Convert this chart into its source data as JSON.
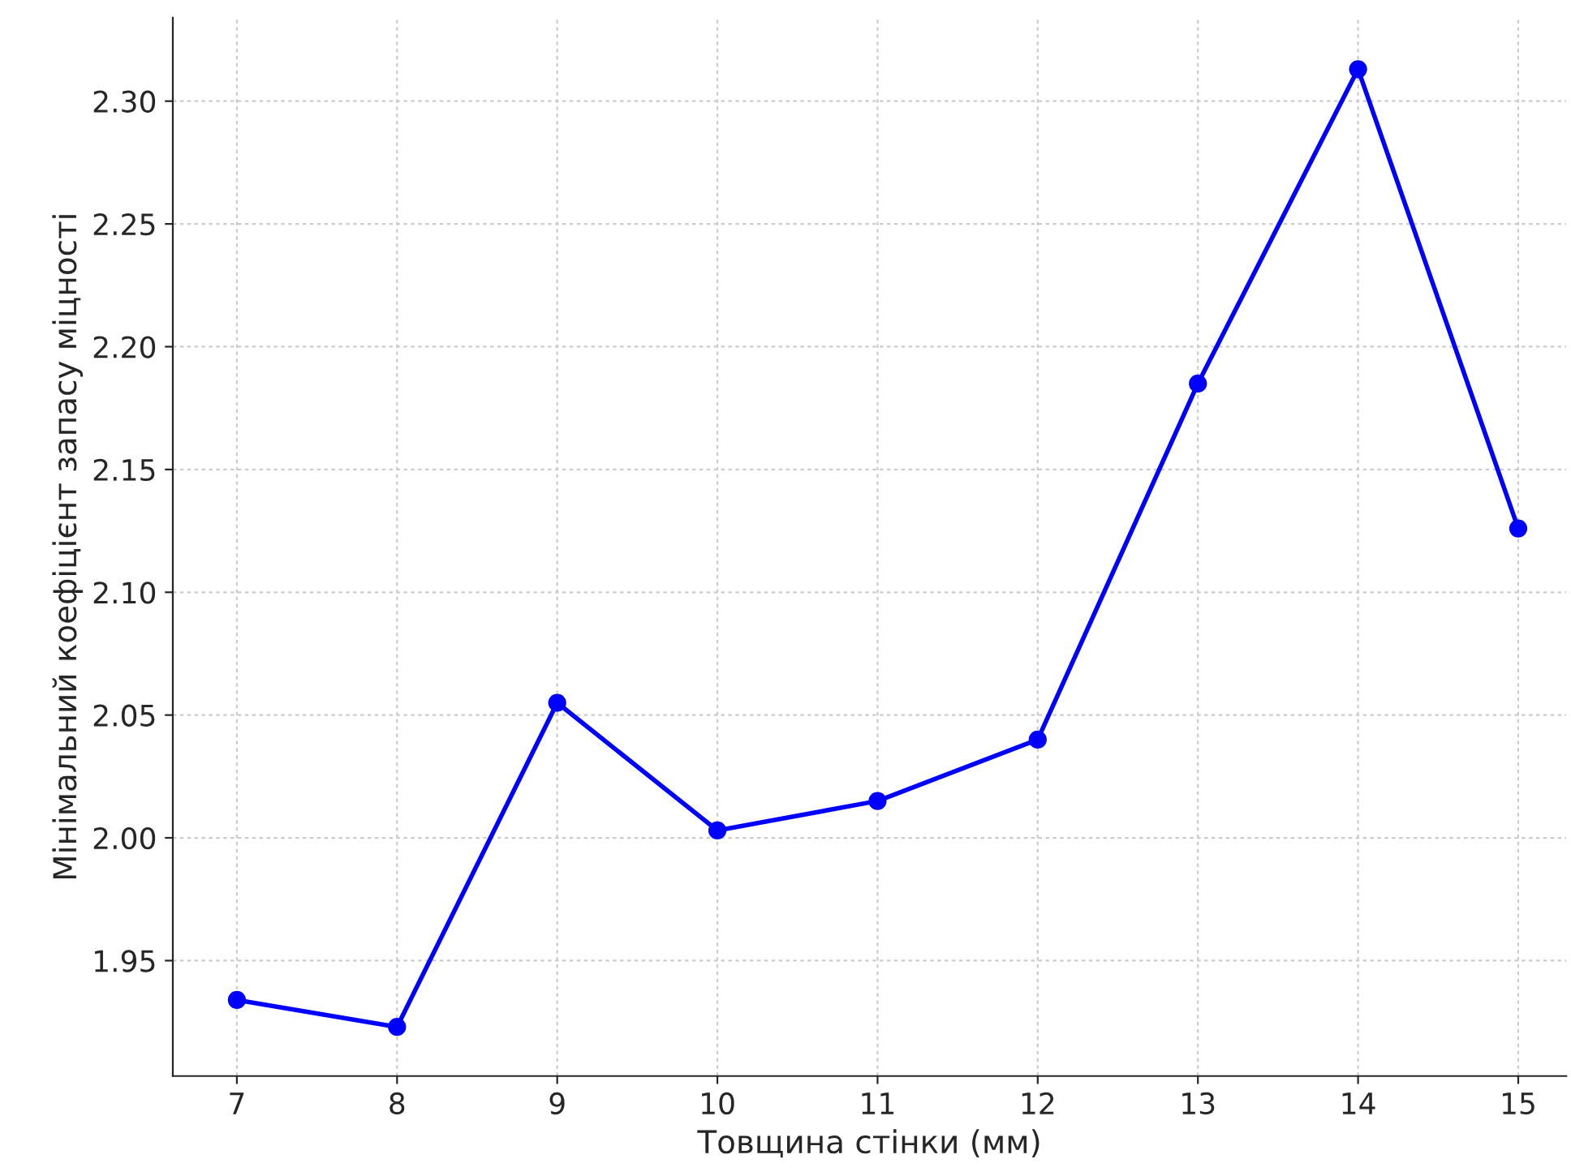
{
  "chart_data": {
    "type": "line",
    "xlabel": "Товщина стінки (мм)",
    "ylabel": "Мінімальний коефіцієнт запасу міцності",
    "x": [
      7,
      8,
      9,
      10,
      11,
      12,
      13,
      14,
      15
    ],
    "series": [
      {
        "color": "#0000ff",
        "values": [
          1.934,
          1.923,
          2.055,
          2.003,
          2.015,
          2.04,
          2.185,
          2.313,
          2.126
        ]
      }
    ],
    "xlim": [
      6.6,
      15.3
    ],
    "xticks": [
      7,
      8,
      9,
      10,
      11,
      12,
      13,
      14,
      15
    ],
    "ylim": [
      1.903,
      2.334
    ],
    "yticks": [
      {
        "value": 1.95,
        "label": "1.95"
      },
      {
        "value": 2.0,
        "label": "2.00"
      },
      {
        "value": 2.05,
        "label": "2.05"
      },
      {
        "value": 2.1,
        "label": "2.10"
      },
      {
        "value": 2.15,
        "label": "2.15"
      },
      {
        "value": 2.2,
        "label": "2.20"
      },
      {
        "value": 2.25,
        "label": "2.25"
      },
      {
        "value": 2.3,
        "label": "2.30"
      }
    ],
    "grid": true,
    "marker": "circle",
    "line_style": "solid"
  }
}
